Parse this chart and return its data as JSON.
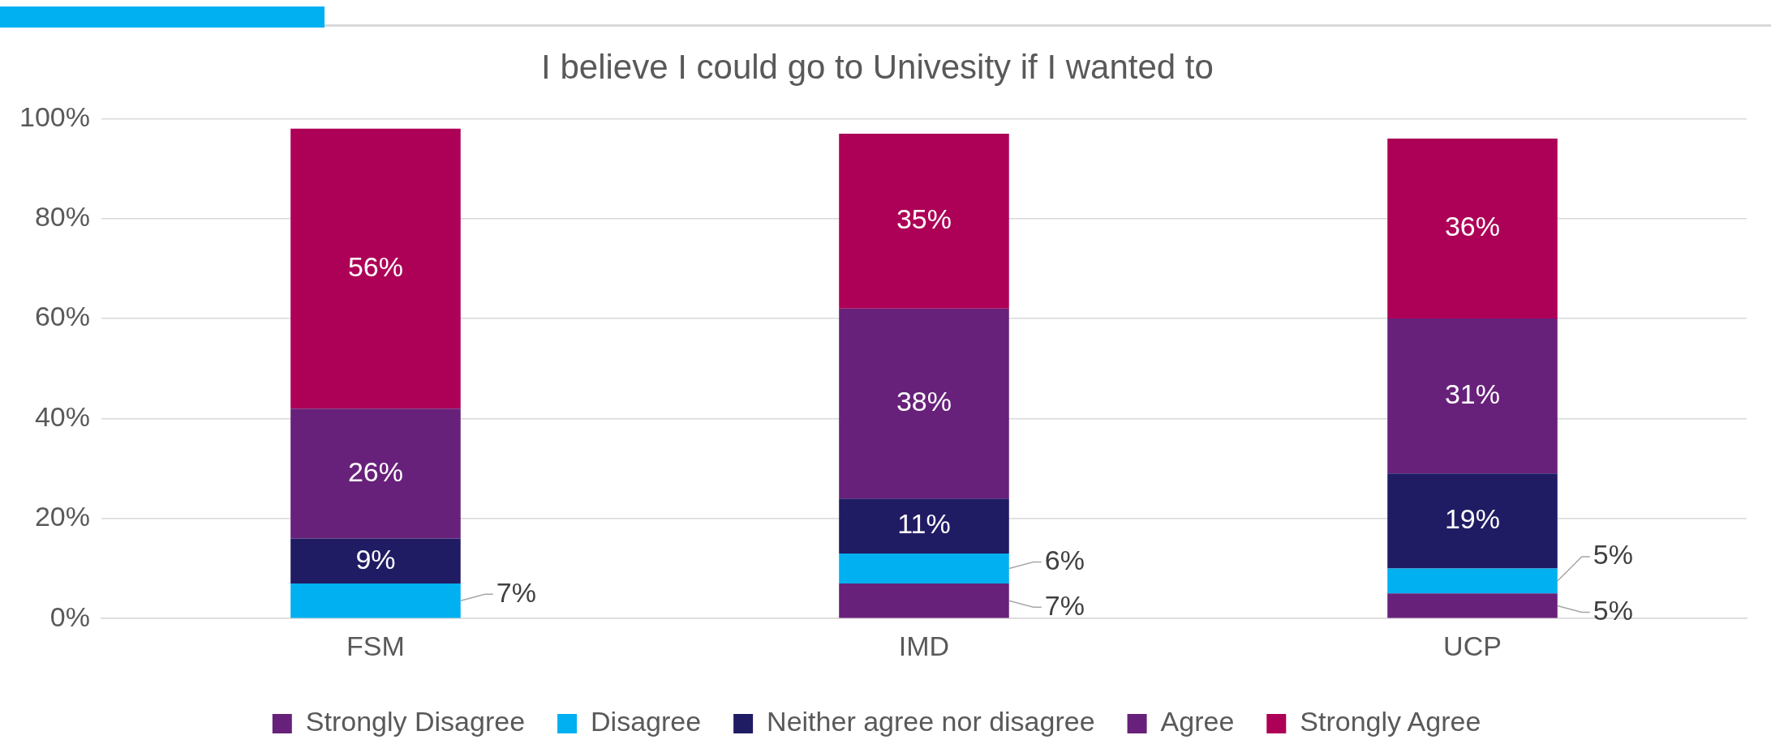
{
  "chart_data": {
    "type": "bar",
    "stacked": true,
    "title": "I believe I could go to Univesity if I wanted to",
    "categories": [
      "FSM",
      "IMD",
      "UCP"
    ],
    "series": [
      {
        "name": "Strongly Disagree",
        "color": "#68217a",
        "values": [
          0,
          7,
          5
        ],
        "value_labels": [
          null,
          "7%",
          "5%"
        ]
      },
      {
        "name": "Disagree",
        "color": "#00b0f0",
        "values": [
          7,
          6,
          5
        ],
        "value_labels": [
          "7%",
          "6%",
          "5%"
        ]
      },
      {
        "name": "Neither agree nor disagree",
        "color": "#201c64",
        "values": [
          9,
          11,
          19
        ],
        "value_labels": [
          "9%",
          "11%",
          "19%"
        ]
      },
      {
        "name": "Agree",
        "color": "#68217a",
        "values": [
          26,
          38,
          31
        ],
        "value_labels": [
          "26%",
          "38%",
          "31%"
        ]
      },
      {
        "name": "Strongly Agree",
        "color": "#ad0057",
        "values": [
          56,
          35,
          36
        ],
        "value_labels": [
          "56%",
          "35%",
          "36%"
        ]
      }
    ],
    "ylim": [
      0,
      100
    ],
    "yticks": [
      {
        "value": 0,
        "label": "0%"
      },
      {
        "value": 20,
        "label": "20%"
      },
      {
        "value": 40,
        "label": "40%"
      },
      {
        "value": 60,
        "label": "60%"
      },
      {
        "value": 80,
        "label": "80%"
      },
      {
        "value": 100,
        "label": "100%"
      }
    ],
    "grid": "y",
    "legend": "bottom"
  }
}
